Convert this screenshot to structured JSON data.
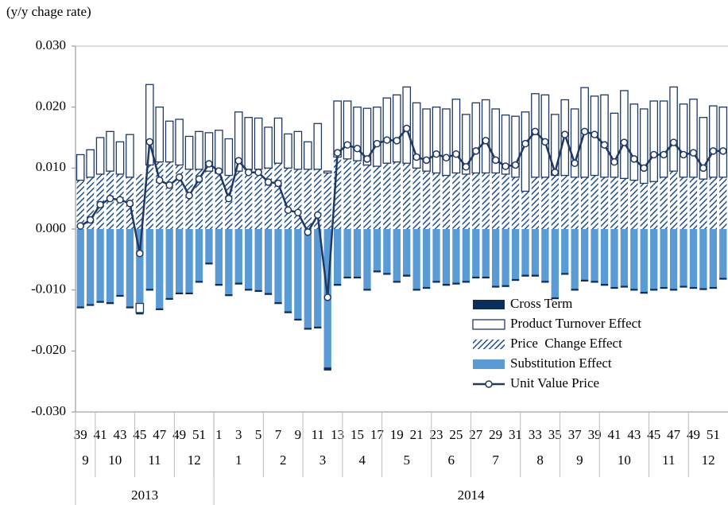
{
  "chart_data": {
    "type": "bar",
    "y_axis_label": "(y/y chage rate)",
    "categories": [
      "39",
      null,
      "41",
      null,
      "43",
      null,
      "45",
      null,
      "47",
      null,
      "49",
      null,
      "51",
      null,
      "1",
      null,
      "3",
      null,
      "5",
      null,
      "7",
      null,
      "9",
      null,
      "11",
      null,
      "13",
      null,
      "15",
      null,
      "17",
      null,
      "19",
      null,
      "21",
      null,
      "23",
      null,
      "25",
      null,
      "27",
      null,
      "29",
      null,
      "31",
      null,
      "33",
      null,
      "35",
      null,
      "37",
      null,
      "39",
      null,
      "41",
      null,
      "43",
      null,
      "45",
      null,
      "47",
      null,
      "49",
      null,
      "51",
      null
    ],
    "months": [
      "9",
      "9",
      "10",
      "10",
      "10",
      "10",
      "11",
      "11",
      "11",
      "11",
      "12",
      "12",
      "12",
      "12",
      "1",
      "1",
      "1",
      "1",
      "1",
      "2",
      "2",
      "2",
      "2",
      "3",
      "3",
      "3",
      "3",
      "4",
      "4",
      "4",
      "4",
      "5",
      "5",
      "5",
      "5",
      "5",
      "6",
      "6",
      "6",
      "6",
      "7",
      "7",
      "7",
      "7",
      "7",
      "8",
      "8",
      "8",
      "8",
      "9",
      "9",
      "9",
      "9",
      "10",
      "10",
      "10",
      "10",
      "10",
      "11",
      "11",
      "11",
      "11",
      "12",
      "12",
      "12",
      "12"
    ],
    "years": [
      "2013",
      "2013",
      "2013",
      "2013",
      "2013",
      "2013",
      "2013",
      "2013",
      "2013",
      "2013",
      "2013",
      "2013",
      "2013",
      "2013",
      "2014",
      "2014",
      "2014",
      "2014",
      "2014",
      "2014",
      "2014",
      "2014",
      "2014",
      "2014",
      "2014",
      "2014",
      "2014",
      "2014",
      "2014",
      "2014",
      "2014",
      "2014",
      "2014",
      "2014",
      "2014",
      "2014",
      "2014",
      "2014",
      "2014",
      "2014",
      "2014",
      "2014",
      "2014",
      "2014",
      "2014",
      "2014",
      "2014",
      "2014",
      "2014",
      "2014",
      "2014",
      "2014",
      "2014",
      "2014",
      "2014",
      "2014",
      "2014",
      "2014",
      "2014",
      "2014",
      "2014",
      "2014",
      "2014",
      "2014",
      "2014",
      "2014"
    ],
    "series": [
      {
        "name": "Cross Term",
        "color": "#0b2d5b",
        "values": [
          -0.0003,
          -0.0003,
          -0.0003,
          -0.0003,
          -0.0003,
          -0.0003,
          -0.0003,
          -0.0003,
          -0.0003,
          -0.0003,
          -0.0003,
          -0.0003,
          -0.0003,
          -0.0003,
          -0.0003,
          -0.0003,
          -0.0003,
          -0.0003,
          -0.0003,
          -0.0003,
          -0.0003,
          -0.0003,
          -0.0003,
          -0.0003,
          -0.0003,
          -0.0005,
          -0.0003,
          -0.0003,
          -0.0003,
          -0.0003,
          -0.0003,
          -0.0003,
          -0.0003,
          -0.0003,
          -0.0003,
          -0.0003,
          -0.0003,
          -0.0003,
          -0.0003,
          -0.0003,
          -0.0003,
          -0.0003,
          -0.0003,
          -0.0003,
          -0.0003,
          -0.0003,
          -0.0003,
          -0.0003,
          -0.0003,
          -0.0003,
          -0.0003,
          -0.0003,
          -0.0003,
          -0.0003,
          -0.0003,
          -0.0003,
          -0.0003,
          -0.0003,
          -0.0003,
          -0.0003,
          -0.0003,
          -0.0003,
          -0.0003,
          -0.0003,
          -0.0003,
          -0.0003
        ]
      },
      {
        "name": "Product Turnover Effect",
        "color": "#1f3864",
        "fill": "#ffffff",
        "values": [
          0.0042,
          0.0045,
          0.006,
          0.0065,
          0.0053,
          0.007,
          -0.0015,
          0.0132,
          0.009,
          0.0067,
          0.0075,
          0.0054,
          0.0062,
          0.0063,
          0.007,
          0.006,
          0.0097,
          0.0085,
          0.0084,
          0.0067,
          0.0074,
          0.0056,
          0.0062,
          0.0045,
          0.0075,
          0.0003,
          0.0092,
          0.0095,
          0.0088,
          0.0093,
          0.0097,
          0.0107,
          0.011,
          0.0125,
          0.0107,
          0.0102,
          0.0108,
          0.0109,
          0.0121,
          0.0098,
          0.0115,
          0.012,
          0.0105,
          0.0097,
          0.01,
          0.013,
          0.0137,
          0.0135,
          0.01,
          0.0124,
          0.0112,
          0.0147,
          0.013,
          0.0135,
          0.0105,
          0.0144,
          0.0125,
          0.0122,
          0.0132,
          0.0125,
          0.0138,
          0.012,
          0.0128,
          0.0101,
          0.0117,
          0.0115
        ]
      },
      {
        "name": "Price  Change Effect",
        "color": "#1f4e8c",
        "hatch": true,
        "values": [
          0.008,
          0.0085,
          0.009,
          0.0095,
          0.009,
          0.0085,
          0.009,
          0.0105,
          0.011,
          0.011,
          0.0105,
          0.0098,
          0.0098,
          0.0095,
          0.0092,
          0.0088,
          0.0095,
          0.0098,
          0.0098,
          0.01,
          0.0108,
          0.01,
          0.0098,
          0.0098,
          0.0098,
          0.0092,
          0.0118,
          0.0115,
          0.0112,
          0.0105,
          0.0103,
          0.0108,
          0.011,
          0.0108,
          0.01,
          0.0095,
          0.0092,
          0.0088,
          0.0092,
          0.009,
          0.0092,
          0.0092,
          0.0092,
          0.009,
          0.0085,
          0.0062,
          0.0085,
          0.0085,
          0.0088,
          0.0088,
          0.0085,
          0.0085,
          0.0088,
          0.0085,
          0.0085,
          0.0083,
          0.008,
          0.0075,
          0.0078,
          0.0085,
          0.0095,
          0.0085,
          0.0085,
          0.0082,
          0.0085,
          0.0085
        ]
      },
      {
        "name": "Substitution Effect",
        "color": "#5b9bd5",
        "values": [
          -0.0127,
          -0.0123,
          -0.0118,
          -0.012,
          -0.0108,
          -0.0127,
          -0.0122,
          -0.0098,
          -0.013,
          -0.0113,
          -0.0104,
          -0.0104,
          -0.0085,
          -0.0055,
          -0.009,
          -0.0107,
          -0.0088,
          -0.0098,
          -0.01,
          -0.0105,
          -0.012,
          -0.0135,
          -0.0147,
          -0.0162,
          -0.016,
          -0.0227,
          -0.009,
          -0.0078,
          -0.0078,
          -0.0098,
          -0.0068,
          -0.0072,
          -0.0085,
          -0.0075,
          -0.0098,
          -0.0095,
          -0.0085,
          -0.009,
          -0.0088,
          -0.0085,
          -0.0078,
          -0.0078,
          -0.0093,
          -0.0092,
          -0.0082,
          -0.0075,
          -0.0075,
          -0.0085,
          -0.0112,
          -0.0072,
          -0.0098,
          -0.0083,
          -0.0085,
          -0.009,
          -0.0095,
          -0.0093,
          -0.0098,
          -0.0103,
          -0.0098,
          -0.0095,
          -0.0098,
          -0.0093,
          -0.0095,
          -0.0097,
          -0.0095,
          -0.008
        ]
      },
      {
        "name": "Unit Value Price",
        "type": "line",
        "color": "#1f3864",
        "values": [
          0.0005,
          0.0015,
          0.004,
          0.005,
          0.0048,
          0.0042,
          -0.004,
          0.0143,
          0.008,
          0.0072,
          0.0085,
          0.0055,
          0.0082,
          0.0107,
          0.0095,
          0.005,
          0.0112,
          0.0093,
          0.0093,
          0.0077,
          0.0075,
          0.0031,
          0.0027,
          -0.0005,
          0.0023,
          -0.0112,
          0.0125,
          0.0138,
          0.0132,
          0.0115,
          0.014,
          0.0146,
          0.0145,
          0.0165,
          0.0118,
          0.0113,
          0.0123,
          0.0117,
          0.0123,
          0.0102,
          0.0128,
          0.0145,
          0.0113,
          0.0103,
          0.0105,
          0.014,
          0.016,
          0.0143,
          0.0093,
          0.0155,
          0.0108,
          0.016,
          0.0155,
          0.0138,
          0.011,
          0.0142,
          0.0115,
          0.01,
          0.0122,
          0.0122,
          0.0142,
          0.0122,
          0.0125,
          0.01,
          0.0128,
          0.0128
        ]
      }
    ],
    "ylim": [
      -0.03,
      0.03
    ],
    "yticks": [
      {
        "value": -0.03,
        "label": "-0.030"
      },
      {
        "value": -0.02,
        "label": "-0.020"
      },
      {
        "value": -0.01,
        "label": "-0.010"
      },
      {
        "value": 0,
        "label": "0.000"
      },
      {
        "value": 0.01,
        "label": "0.010"
      },
      {
        "value": 0.02,
        "label": "0.020"
      },
      {
        "value": 0.03,
        "label": "0.030"
      }
    ],
    "grid": false,
    "legend": "lower right"
  }
}
